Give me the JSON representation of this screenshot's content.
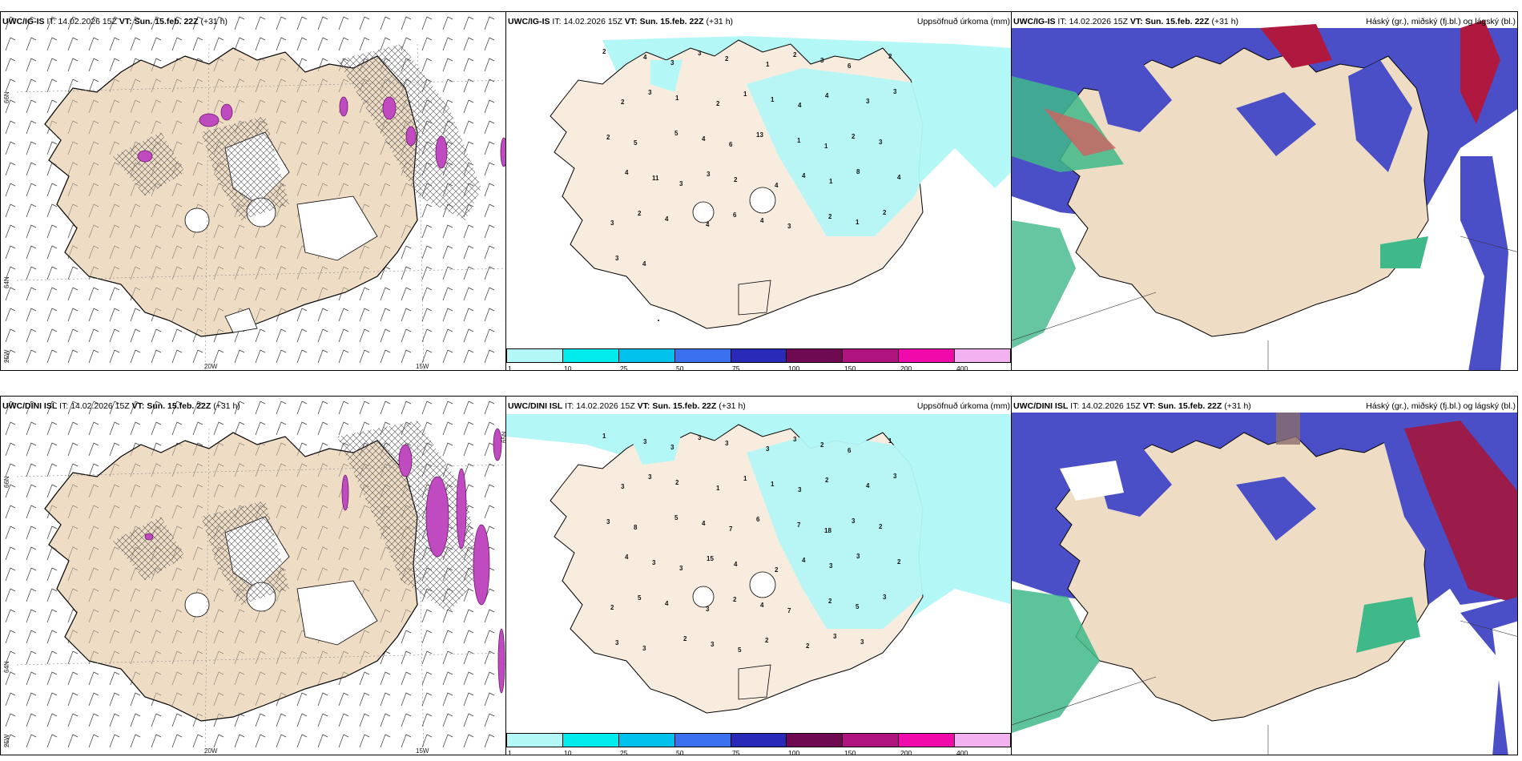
{
  "header_common": {
    "it_label": "IT:",
    "it_value": "14.02.2026 15Z",
    "vt_label": "VT:",
    "vt_value": "Sun. 15.feb. 22Z",
    "lead": "(+31 h)"
  },
  "rows": [
    {
      "model": "UWC/IG-IS"
    },
    {
      "model": "UWC/DINI ISL"
    }
  ],
  "panel_titles": {
    "precip": "Uppsöfnuð úrkoma (mm)",
    "clouds_row1": "Háský (gr.), miðský (fj.bl.) og lágský (bl.)",
    "clouds_row2": "Háský (gr.), miðský (fj.bl.) og lágský (bl.)"
  },
  "axis_labels": {
    "lat66": "66N",
    "lat64": "64N",
    "lon25": "25W",
    "lon20": "20W",
    "lon15": "15W",
    "lat65": "65N"
  },
  "legend": {
    "ticks": [
      "1",
      "10",
      "25",
      "50",
      "75",
      "100",
      "150",
      "200",
      "400"
    ],
    "colors": [
      "#b4f7f7",
      "#00ecec",
      "#00c2ec",
      "#3a6ff0",
      "#2a2ab8",
      "#6e0a52",
      "#b0147e",
      "#f00aaa",
      "#f2b2f2"
    ]
  },
  "precip_numbers_row1": [
    "2",
    "4",
    "3",
    "3",
    "2",
    "1",
    "2",
    "3",
    "6",
    "2",
    "2",
    "3",
    "1",
    "2",
    "1",
    "1",
    "4",
    "4",
    "3",
    "3",
    "2",
    "5",
    "5",
    "4",
    "6",
    "13",
    "1",
    "1",
    "2",
    "3",
    "4",
    "11",
    "3",
    "3",
    "2",
    "4",
    "4",
    "1",
    "8",
    "4",
    "3",
    "2",
    "4",
    "4",
    "6",
    "4",
    "3",
    "2",
    "1",
    "2",
    "3",
    "4"
  ],
  "precip_numbers_row2": [
    "1",
    "3",
    "3",
    "3",
    "3",
    "3",
    "3",
    "2",
    "6",
    "1",
    "3",
    "3",
    "2",
    "1",
    "1",
    "1",
    "3",
    "2",
    "4",
    "3",
    "3",
    "8",
    "5",
    "4",
    "7",
    "6",
    "7",
    "18",
    "3",
    "2",
    "4",
    "3",
    "3",
    "15",
    "4",
    "2",
    "4",
    "3",
    "3",
    "2",
    "2",
    "5",
    "4",
    "3",
    "2",
    "4",
    "7",
    "2",
    "5",
    "3",
    "3",
    "3",
    "2",
    "3",
    "5",
    "2",
    "2",
    "3",
    "3"
  ]
}
